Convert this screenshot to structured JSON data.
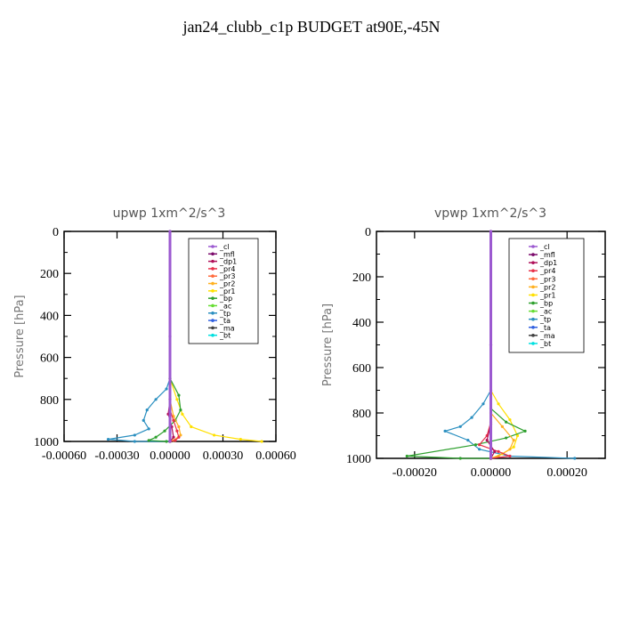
{
  "title": "jan24_clubb_c1p  BUDGET at90E,-45N",
  "colors": {
    "_cl": "#9b59d0",
    "_mfl": "#7b0a6b",
    "_dp1": "#b0105a",
    "_pr4": "#e8304a",
    "_pr3": "#ff6a3c",
    "_pr2": "#ffb020",
    "_pr1": "#ffe000",
    "_bp": "#2ea02e",
    "_ac": "#66dd33",
    "_tp": "#2a8fc0",
    "_ta": "#3060e0",
    "_ma": "#404040",
    "_bt": "#00e0e0"
  },
  "chart_data": [
    {
      "type": "line",
      "title": "upwp   1xm^2/s^3",
      "ylabel": "Pressure [hPa]",
      "xlabel": "",
      "xlim": [
        -0.0006,
        0.0006
      ],
      "ylim": [
        1000,
        0
      ],
      "xticks": [
        "-0.00060",
        "-0.00030",
        "0.00000",
        "0.00030",
        "0.00060"
      ],
      "yticks": [
        "0",
        "200",
        "400",
        "600",
        "800",
        "1000"
      ],
      "grid": false,
      "legend": "top-right",
      "legend_entries": [
        "_cl",
        "_mfl",
        "_dp1",
        "_pr4",
        "_pr3",
        "_pr2",
        "_pr1",
        "_bp",
        "_ac",
        "_tp",
        "_ta",
        "_ma",
        "_bt"
      ],
      "series": [
        {
          "name": "_tp",
          "x": [
            0,
            -2e-05,
            -8e-05,
            -0.00013,
            -0.00015,
            -0.00012,
            -0.0002,
            -0.00035,
            -0.0002,
            0
          ],
          "y": [
            700,
            750,
            800,
            850,
            900,
            940,
            970,
            990,
            1000,
            1000
          ]
        },
        {
          "name": "_pr1",
          "x": [
            0,
            4e-05,
            7e-05,
            0.00012,
            0.00025,
            0.0004,
            0.00052
          ],
          "y": [
            700,
            800,
            870,
            930,
            970,
            990,
            1000
          ]
        },
        {
          "name": "_bp",
          "x": [
            0,
            5e-05,
            6e-05,
            3e-05,
            -3e-05,
            -8e-05,
            -0.00012,
            -2e-05
          ],
          "y": [
            700,
            780,
            850,
            900,
            950,
            980,
            995,
            1000
          ]
        },
        {
          "name": "_pr2",
          "x": [
            0,
            2e-05,
            5e-05,
            6e-05,
            2e-05,
            0
          ],
          "y": [
            800,
            880,
            930,
            970,
            995,
            1000
          ]
        },
        {
          "name": "_pr4",
          "x": [
            0,
            2e-05,
            4e-05,
            5e-05,
            3e-05,
            0
          ],
          "y": [
            850,
            900,
            950,
            980,
            995,
            1000
          ]
        },
        {
          "name": "_dp1",
          "x": [
            0,
            -1e-05,
            1e-05,
            2e-05,
            0
          ],
          "y": [
            800,
            870,
            930,
            980,
            1000
          ]
        },
        {
          "name": "_mfl",
          "x": [
            0,
            0,
            0
          ],
          "y": [
            0,
            500,
            1000
          ]
        },
        {
          "name": "_cl",
          "x": [
            0,
            0,
            0
          ],
          "y": [
            0,
            500,
            1000
          ]
        }
      ]
    },
    {
      "type": "line",
      "title": "vpwp   1xm^2/s^3",
      "ylabel": "Pressure [hPa]",
      "xlabel": "",
      "xlim": [
        -0.0003,
        0.0003
      ],
      "ylim": [
        1000,
        0
      ],
      "xticks": [
        "-0.00020",
        "0.00000",
        "0.00020"
      ],
      "yticks": [
        "0",
        "200",
        "400",
        "600",
        "800",
        "1000"
      ],
      "grid": false,
      "legend": "top-right",
      "legend_entries": [
        "_cl",
        "_mfl",
        "_dp1",
        "_pr4",
        "_pr3",
        "_pr2",
        "_pr1",
        "_bp",
        "_ac",
        "_tp",
        "_ta",
        "_ma",
        "_bt"
      ],
      "series": [
        {
          "name": "_tp",
          "x": [
            0,
            -2e-05,
            -5e-05,
            -8e-05,
            -0.00012,
            -6e-05,
            -3e-05,
            5e-05,
            0.00022
          ],
          "y": [
            700,
            760,
            820,
            860,
            880,
            920,
            960,
            990,
            1000
          ]
        },
        {
          "name": "_pr1",
          "x": [
            0,
            2e-05,
            5e-05,
            7e-05,
            6e-05,
            3e-05,
            0
          ],
          "y": [
            700,
            760,
            830,
            900,
            950,
            980,
            1000
          ]
        },
        {
          "name": "_bp",
          "x": [
            0,
            4e-05,
            9e-05,
            4e-05,
            -4e-05,
            -0.00022,
            -8e-05,
            0
          ],
          "y": [
            780,
            840,
            880,
            910,
            940,
            990,
            1000,
            1000
          ]
        },
        {
          "name": "_pr2",
          "x": [
            0,
            3e-05,
            6e-05,
            5e-05,
            2e-05,
            0
          ],
          "y": [
            800,
            860,
            920,
            960,
            990,
            1000
          ]
        },
        {
          "name": "_pr4",
          "x": [
            0,
            -1e-05,
            -3e-05,
            2e-05,
            5e-05,
            0
          ],
          "y": [
            840,
            900,
            940,
            970,
            990,
            1000
          ]
        },
        {
          "name": "_dp1",
          "x": [
            0,
            -1e-05,
            1e-05,
            0
          ],
          "y": [
            850,
            920,
            970,
            1000
          ]
        },
        {
          "name": "_mfl",
          "x": [
            0,
            0,
            0
          ],
          "y": [
            0,
            500,
            1000
          ]
        },
        {
          "name": "_cl",
          "x": [
            0,
            0,
            0
          ],
          "y": [
            0,
            500,
            1000
          ]
        }
      ]
    }
  ]
}
